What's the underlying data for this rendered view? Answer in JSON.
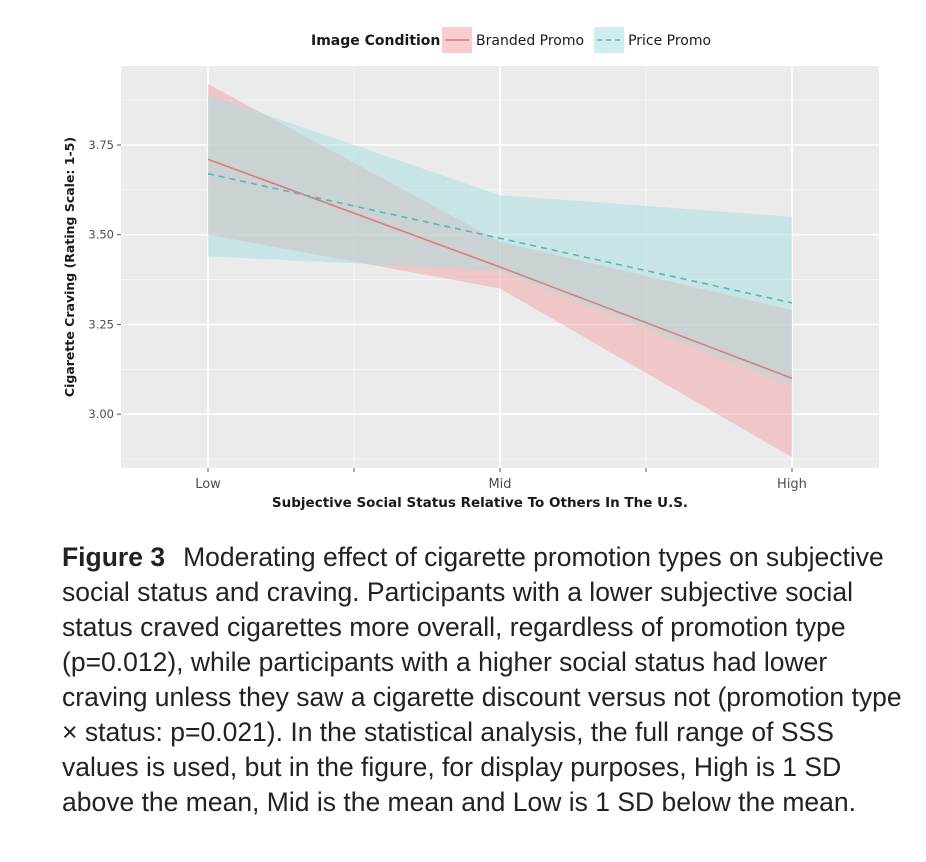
{
  "chart_data": {
    "type": "line",
    "legend_title": "Image Condition",
    "legend_position": "top",
    "xlabel": "Subjective Social Status Relative To Others In The U.S.",
    "ylabel": "Cigarette Craving (Rating Scale: 1-5)",
    "categories": [
      "Low",
      "Mid",
      "High"
    ],
    "x_ticks": [
      "Low",
      "",
      "Mid",
      "",
      "High"
    ],
    "y_ticks": [
      "3.00",
      "3.25",
      "3.50",
      "3.75"
    ],
    "ylim": [
      2.85,
      3.97
    ],
    "grid": true,
    "series": [
      {
        "name": "Branded Promo",
        "color": "#e07b73",
        "band_color": "#f4a3a6",
        "line_style": "solid",
        "values": [
          3.71,
          3.41,
          3.1
        ],
        "ci_lower": [
          3.5,
          3.35,
          2.88
        ],
        "ci_upper": [
          3.92,
          3.48,
          3.29
        ]
      },
      {
        "name": "Price Promo",
        "color": "#4fb9bd",
        "band_color": "#a8dde0",
        "line_style": "dashed",
        "values": [
          3.67,
          3.49,
          3.31
        ],
        "ci_lower": [
          3.44,
          3.4,
          3.08
        ],
        "ci_upper": [
          3.89,
          3.61,
          3.55
        ]
      }
    ]
  },
  "caption": {
    "label": "Figure 3",
    "text": "Moderating effect of cigarette promotion types on subjective social status and craving. Participants with a lower subjective social status craved cigarettes more overall, regardless of promotion type (p=0.012), while participants with a higher social status had lower craving unless they saw a cigarette discount versus not (promotion type × status: p=0.021). In the statistical analysis, the full range of SSS values is used, but in the figure, for display purposes, High is 1 SD above the mean, Mid is the mean and Low is 1 SD below the mean."
  }
}
